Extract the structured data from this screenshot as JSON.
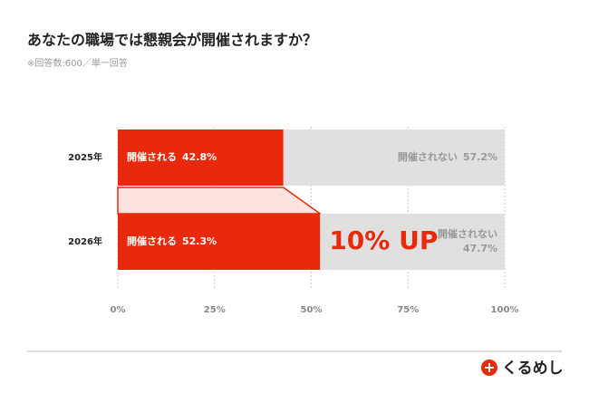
{
  "chart_data": {
    "type": "stacked-bar-horizontal",
    "title": "あなたの職場では懇親会が開催されますか？",
    "subtitle": "※回答数:600／単一回答",
    "categories": [
      "2025年",
      "2026年"
    ],
    "series": [
      {
        "name": "開催される",
        "color": "#e8290b",
        "values": [
          42.8,
          52.3
        ],
        "value_labels": [
          "42.8%",
          "52.3%"
        ]
      },
      {
        "name": "開催されない",
        "color": "#e0e0e0",
        "values": [
          57.2,
          47.7
        ],
        "value_labels": [
          "57.2%",
          "47.7%"
        ]
      }
    ],
    "annotation": "10% UP",
    "xlim": [
      0,
      100
    ],
    "xticks": [
      {
        "value": 0,
        "label": "0%"
      },
      {
        "value": 25,
        "label": "25%"
      },
      {
        "value": 50,
        "label": "50%"
      },
      {
        "value": 75,
        "label": "75%"
      },
      {
        "value": 100,
        "label": "100%"
      }
    ],
    "grid": true
  },
  "footer": {
    "brand": "くるめし"
  }
}
